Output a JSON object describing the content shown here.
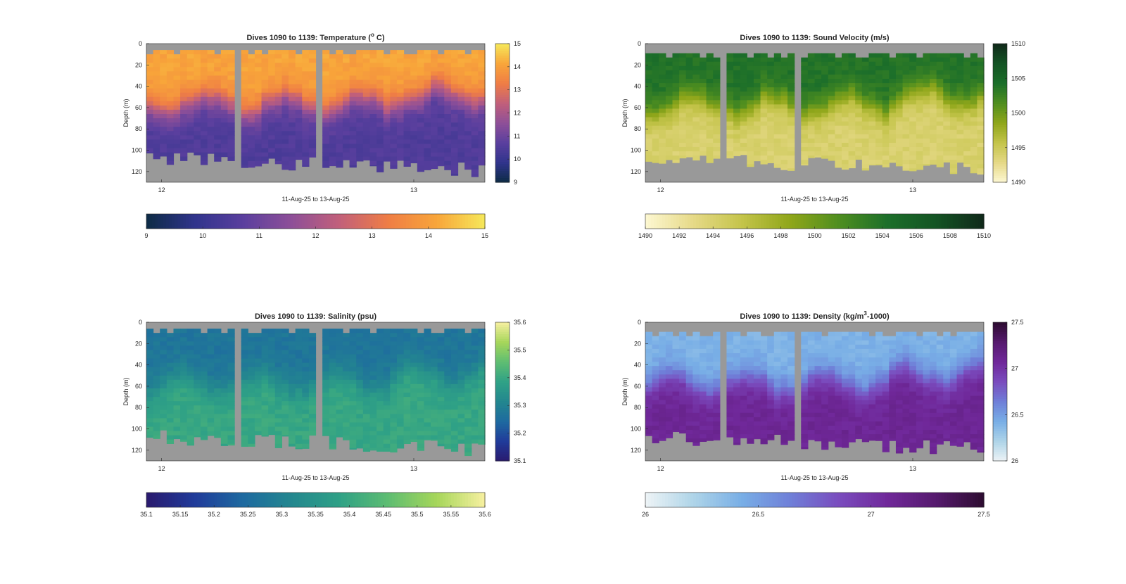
{
  "figure": {
    "background": "#ffffff",
    "nodata_color": "#999999"
  },
  "chart_data": [
    {
      "type": "heatmap",
      "variable": "temperature",
      "title": "Dives 1090 to 1139: Temperature (",
      "title_sup": "o",
      "title_tail": " C)",
      "xlabel": "11-Aug-25 to 13-Aug-25",
      "ylabel": "Depth (m)",
      "x_ticks": [
        "12",
        "13"
      ],
      "y_ticks": [
        0,
        20,
        40,
        60,
        80,
        100,
        120
      ],
      "ylim": [
        0,
        130
      ],
      "n_dives": 50,
      "gaps": [
        13,
        25
      ],
      "surface_value": 14.1,
      "deep_value": 10.5,
      "clim": [
        9,
        15
      ],
      "colorbar_ticks": [
        9,
        10,
        11,
        12,
        13,
        14,
        15
      ],
      "h_colorbar_ticks": [
        9,
        10,
        11,
        12,
        13,
        14,
        15
      ],
      "colormap": [
        "#0d2b45",
        "#30348c",
        "#5a3f9e",
        "#8e4f98",
        "#c2607a",
        "#ef7d45",
        "#f8a53a",
        "#f6e85a"
      ]
    },
    {
      "type": "heatmap",
      "variable": "sound_velocity",
      "title": "Dives 1090 to 1139: Sound Velocity (m/s)",
      "title_sup": "",
      "title_tail": "",
      "xlabel": "11-Aug-25 to 13-Aug-25",
      "ylabel": "Depth (m)",
      "x_ticks": [
        "12",
        "13"
      ],
      "y_ticks": [
        0,
        20,
        40,
        60,
        80,
        100,
        120
      ],
      "ylim": [
        0,
        130
      ],
      "n_dives": 50,
      "gaps": [
        11,
        22
      ],
      "surface_value": 1504,
      "deep_value": 1494,
      "clim": [
        1490,
        1510
      ],
      "colorbar_ticks": [
        1490,
        1495,
        1500,
        1505,
        1510
      ],
      "h_colorbar_ticks": [
        1490,
        1492,
        1494,
        1496,
        1498,
        1500,
        1502,
        1504,
        1506,
        1508,
        1510
      ],
      "colormap": [
        "#fdf8d2",
        "#e6d987",
        "#c4c44a",
        "#8fa61a",
        "#4f8e1f",
        "#1c6f2a",
        "#145424",
        "#10291a"
      ]
    },
    {
      "type": "heatmap",
      "variable": "salinity",
      "title": "Dives 1090 to 1139: Salinity (psu)",
      "title_sup": "",
      "title_tail": "",
      "xlabel": "11-Aug-25 to 13-Aug-25",
      "ylabel": "Depth (m)",
      "x_ticks": [
        "12",
        "13"
      ],
      "y_ticks": [
        0,
        20,
        40,
        60,
        80,
        100,
        120
      ],
      "ylim": [
        0,
        130
      ],
      "n_dives": 50,
      "gaps": [
        13,
        25
      ],
      "surface_value": 35.27,
      "deep_value": 35.4,
      "clim": [
        35.1,
        35.6
      ],
      "colorbar_ticks": [
        35.1,
        35.2,
        35.3,
        35.4,
        35.5,
        35.6
      ],
      "h_colorbar_ticks": [
        "35.1",
        "35.15",
        "35.2",
        "35.25",
        "35.3",
        "35.35",
        "35.4",
        "35.45",
        "35.5",
        "35.55",
        "35.6"
      ],
      "colormap": [
        "#2a1a6e",
        "#203b9a",
        "#1e6aa0",
        "#23878f",
        "#2fa186",
        "#5ebd72",
        "#a6d65a",
        "#f7f0a0"
      ]
    },
    {
      "type": "heatmap",
      "variable": "density",
      "title": "Dives 1090 to 1139: Density (kg/m",
      "title_sup": "3",
      "title_tail": "-1000)",
      "xlabel": "11-Aug-25 to 13-Aug-25",
      "ylabel": "Depth (m)",
      "x_ticks": [
        "12",
        "13"
      ],
      "y_ticks": [
        0,
        20,
        40,
        60,
        80,
        100,
        120
      ],
      "ylim": [
        0,
        130
      ],
      "n_dives": 50,
      "gaps": [
        11,
        22
      ],
      "surface_value": 26.4,
      "deep_value": 27.1,
      "clim": [
        26,
        27.5
      ],
      "colorbar_ticks": [
        26,
        26.5,
        27,
        27.5
      ],
      "h_colorbar_ticks": [
        26,
        26.5,
        27,
        27.5
      ],
      "colormap": [
        "#eef4f6",
        "#aed4e8",
        "#78aee6",
        "#6f7fd8",
        "#7a4cbe",
        "#70289a",
        "#561a6e",
        "#2d0c30"
      ]
    }
  ]
}
